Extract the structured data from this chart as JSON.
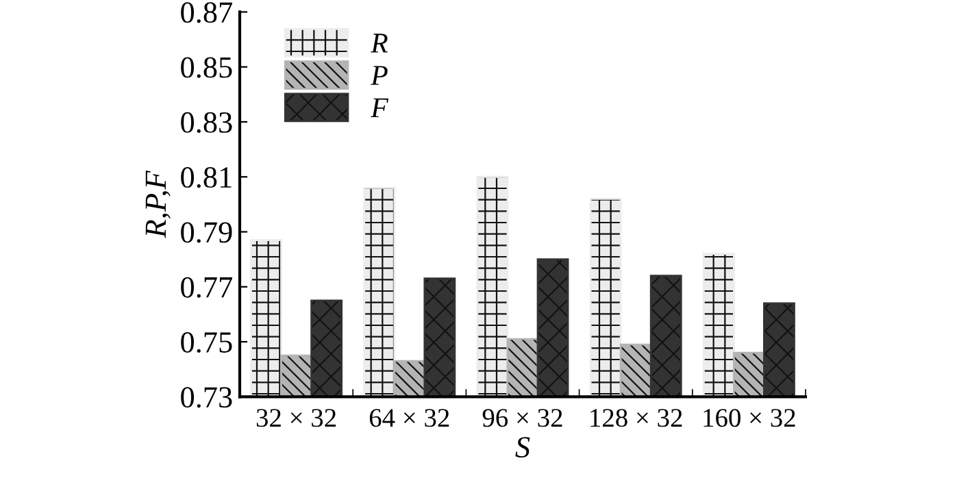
{
  "chart_data": {
    "type": "bar",
    "xlabel": "S",
    "ylabel": "R,P,F",
    "categories": [
      "32 × 32",
      "64 × 32",
      "96 × 32",
      "128 × 32",
      "160 × 32"
    ],
    "series": [
      {
        "name": "R",
        "color": "#ececec",
        "values": [
          0.787,
          0.806,
          0.81,
          0.802,
          0.782
        ]
      },
      {
        "name": "P",
        "color": "#b4b4b4",
        "values": [
          0.745,
          0.743,
          0.751,
          0.749,
          0.746
        ]
      },
      {
        "name": "F",
        "color": "#333333",
        "values": [
          0.765,
          0.773,
          0.78,
          0.774,
          0.764
        ]
      }
    ],
    "ylim": [
      0.73,
      0.87
    ],
    "yticks": [
      0.73,
      0.75,
      0.77,
      0.79,
      0.81,
      0.83,
      0.85,
      0.87
    ],
    "grid": false,
    "legend": "top left"
  }
}
